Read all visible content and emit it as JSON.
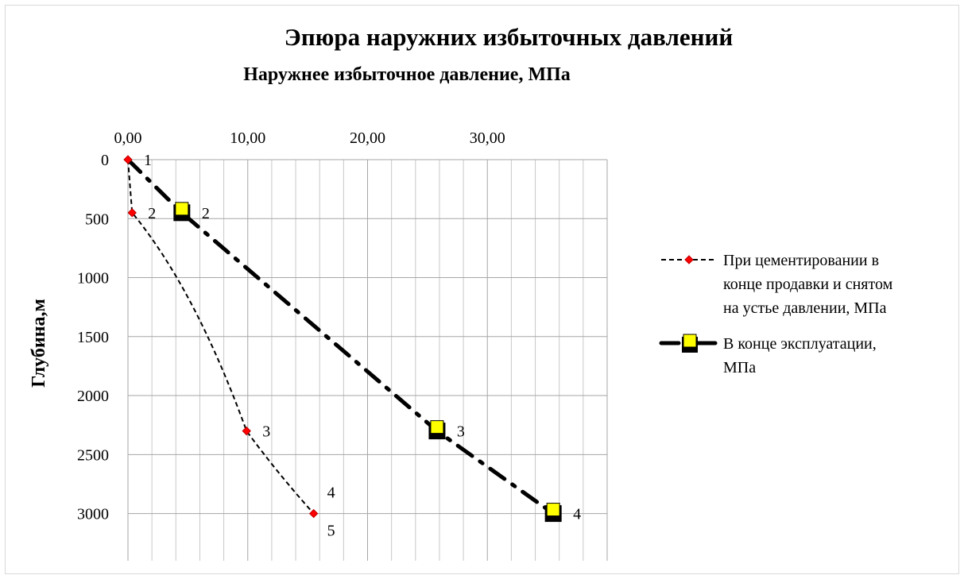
{
  "chart_data": {
    "type": "line",
    "title": "Эпюра наружних избыточных давлений",
    "subtitle": "Наружнее избыточное давление, МПа",
    "xlabel": "Наружнее избыточное давление, МПа",
    "ylabel": "Глубина,м",
    "x_axis_position": "top",
    "y_axis_reversed": true,
    "xlim": [
      0,
      40
    ],
    "ylim": [
      0,
      3400
    ],
    "x_ticks": [
      "0,00",
      "10,00",
      "20,00",
      "30,00"
    ],
    "x_tick_values": [
      0,
      10,
      20,
      30
    ],
    "y_ticks": [
      "0",
      "500",
      "1000",
      "1500",
      "2000",
      "2500",
      "3000"
    ],
    "y_tick_values": [
      0,
      500,
      1000,
      1500,
      2000,
      2500,
      3000
    ],
    "grid": true,
    "legend_position": "right",
    "series": [
      {
        "name": "При цементировании в конце продавки и снятом на устье давлении, МПа",
        "color": "#ff0000",
        "line_color": "#000000",
        "line_style": "dashed",
        "marker": "diamond",
        "points": [
          {
            "x": 0.0,
            "y": 0,
            "label": "1"
          },
          {
            "x": 0.35,
            "y": 450,
            "label": "2"
          },
          {
            "x": 9.9,
            "y": 2300,
            "label": "3"
          },
          {
            "x": 15.5,
            "y": 3000,
            "label": "4",
            "label2": "5"
          }
        ]
      },
      {
        "name": "В конце эксплуатации, МПа",
        "color": "#ffff00",
        "line_color": "#000000",
        "line_style": "dash-dot",
        "marker": "square",
        "points": [
          {
            "x": 0.0,
            "y": 0,
            "label": ""
          },
          {
            "x": 4.5,
            "y": 450,
            "label": "2"
          },
          {
            "x": 25.8,
            "y": 2300,
            "label": "3"
          },
          {
            "x": 35.5,
            "y": 3000,
            "label": "4"
          }
        ]
      }
    ],
    "legend_lines": [
      [
        "При цементировании в",
        "конце продавки и снятом",
        "на устье давлении, МПа"
      ],
      [
        "В конце эксплуатации,",
        "МПа"
      ]
    ]
  }
}
